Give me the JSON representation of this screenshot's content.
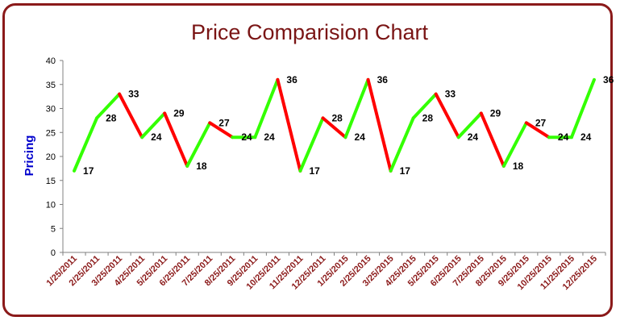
{
  "colors": {
    "frame": "#8b1a1a",
    "title": "#7a1515",
    "up": "#33ff00",
    "down": "#ff0000",
    "xtick": "#8b1a1a",
    "ylabel": "#0000cc",
    "axis": "#808080"
  },
  "chart_data": {
    "type": "line",
    "title": "Price Comparision Chart",
    "xlabel": "",
    "ylabel": "Pricing",
    "ylim": [
      0,
      40
    ],
    "yticks": [
      0,
      5,
      10,
      15,
      20,
      25,
      30,
      35,
      40
    ],
    "grid": false,
    "legend": "none",
    "segment_coloring": "green when price rises, red when price falls",
    "categories": [
      "1/25/2011",
      "2/25/2011",
      "3/25/2011",
      "4/25/2011",
      "5/25/2011",
      "6/25/2011",
      "7/25/2011",
      "8/25/2011",
      "9/25/2011",
      "10/25/2011",
      "11/25/2011",
      "12/25/2011",
      "1/25/2015",
      "2/25/2015",
      "3/25/2015",
      "4/25/2015",
      "5/25/2015",
      "6/25/2015",
      "7/25/2015",
      "8/25/2015",
      "9/25/2015",
      "10/25/2015",
      "11/25/2015",
      "12/25/2015"
    ],
    "values": [
      17,
      28,
      33,
      24,
      29,
      18,
      27,
      24,
      24,
      36,
      17,
      28,
      24,
      36,
      17,
      28,
      33,
      24,
      29,
      18,
      27,
      24,
      24,
      36
    ],
    "data_labels": [
      "17",
      "28",
      "33",
      "24",
      "29",
      "18",
      "27",
      "24",
      "24",
      "36",
      "17",
      "28",
      "24",
      "36",
      "17",
      "28",
      "33",
      "24",
      "29",
      "18",
      "27",
      "24",
      "24",
      "36"
    ]
  }
}
